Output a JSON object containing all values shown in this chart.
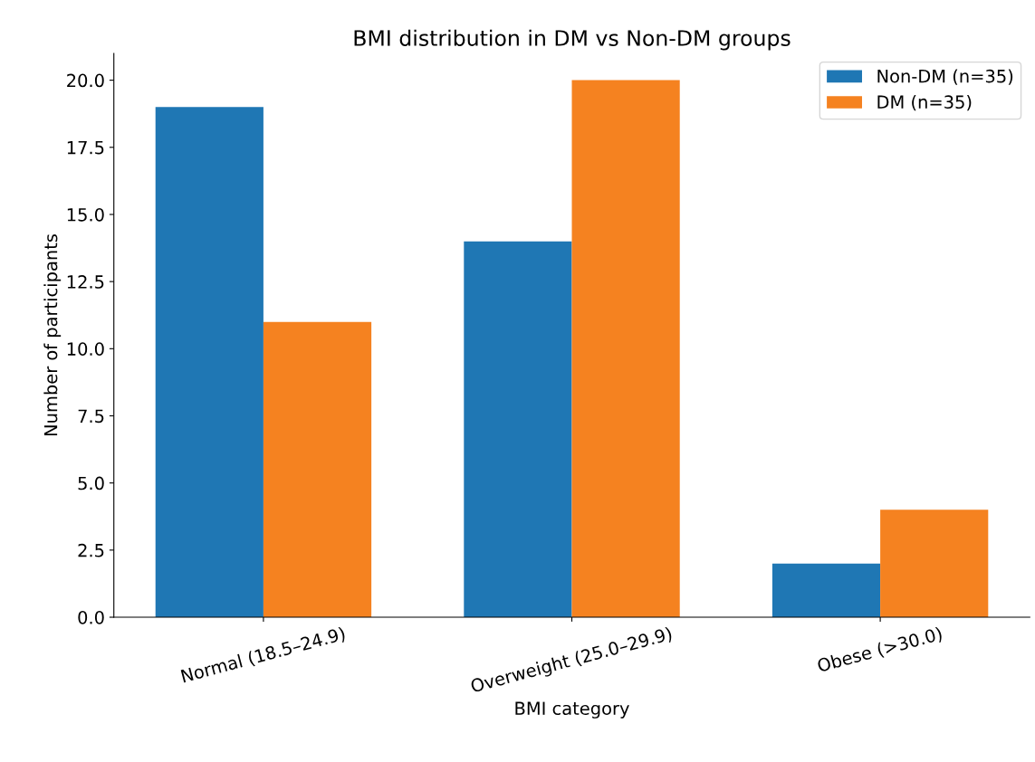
{
  "chart_data": {
    "type": "bar",
    "title": "BMI distribution in DM vs Non-DM groups",
    "xlabel": "BMI category",
    "ylabel": "Number of participants",
    "categories": [
      "Normal (18.5–24.9)",
      "Overweight (25.0–29.9)",
      "Obese (>30.0)"
    ],
    "series": [
      {
        "name": "Non-DM (n=35)",
        "color": "#1f77b4",
        "values": [
          19,
          14,
          2
        ]
      },
      {
        "name": "DM (n=35)",
        "color": "#f58220",
        "values": [
          11,
          20,
          4
        ]
      }
    ],
    "ylim": [
      0,
      21
    ],
    "yticks": [
      {
        "value": 0,
        "label": "0.0"
      },
      2.5,
      {
        "value": 5,
        "label": "5.0"
      },
      7.5,
      {
        "value": 10,
        "label": "10.0"
      },
      12.5,
      {
        "value": 15,
        "label": "15.0"
      },
      17.5,
      {
        "value": 20,
        "label": "20.0"
      }
    ],
    "grid": false,
    "legend": "top right"
  }
}
